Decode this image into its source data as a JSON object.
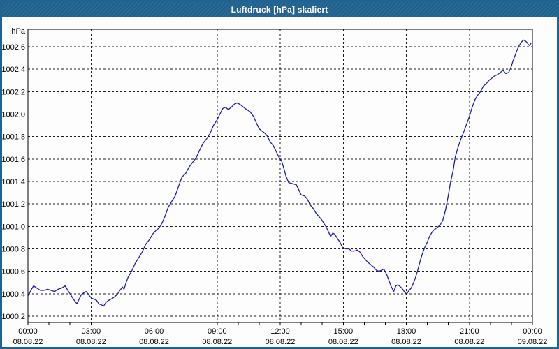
{
  "window": {
    "title": "Luftdruck [hPa] skaliert"
  },
  "colors": {
    "titlebar_bg": "#1f6391",
    "line": "#1c1cac",
    "grid": "#1b1b1b",
    "plot_bg": "#fdfdfd"
  },
  "chart_data": {
    "type": "line",
    "title": "Luftdruck [hPa] skaliert",
    "ylabel": "hPa",
    "xlabel": "",
    "grid": true,
    "legend": "none",
    "xlim": [
      0,
      24
    ],
    "ylim": [
      1000.144,
      1002.755
    ],
    "line_color": "#1c1cac",
    "y_ticks": [
      {
        "value": 1000.2,
        "label": "1000,2"
      },
      {
        "value": 1000.4,
        "label": "1000,4"
      },
      {
        "value": 1000.6,
        "label": "1000,6"
      },
      {
        "value": 1000.8,
        "label": "1000,8"
      },
      {
        "value": 1001.0,
        "label": "1001,0"
      },
      {
        "value": 1001.2,
        "label": "1001,2"
      },
      {
        "value": 1001.4,
        "label": "1001,4"
      },
      {
        "value": 1001.6,
        "label": "1001,6"
      },
      {
        "value": 1001.8,
        "label": "1001,8"
      },
      {
        "value": 1002.0,
        "label": "1002,0"
      },
      {
        "value": 1002.2,
        "label": "1002,2"
      },
      {
        "value": 1002.4,
        "label": "1002,4"
      },
      {
        "value": 1002.6,
        "label": "1002,6"
      }
    ],
    "x_ticks": [
      {
        "hour": 0,
        "time": "00:00",
        "date": "08.08.22"
      },
      {
        "hour": 3,
        "time": "03:00",
        "date": "08.08.22"
      },
      {
        "hour": 6,
        "time": "06:00",
        "date": "08.08.22"
      },
      {
        "hour": 9,
        "time": "09:00",
        "date": "08.08.22"
      },
      {
        "hour": 12,
        "time": "12:00",
        "date": "08.08.22"
      },
      {
        "hour": 15,
        "time": "15:00",
        "date": "08.08.22"
      },
      {
        "hour": 18,
        "time": "18:00",
        "date": "08.08.22"
      },
      {
        "hour": 21,
        "time": "21:00",
        "date": "08.08.22"
      },
      {
        "hour": 24,
        "time": "00:00",
        "date": "09.08.22"
      }
    ],
    "minor_tick_every_hours": 1,
    "series": [
      {
        "name": "Luftdruck",
        "x_hours": [
          0.0,
          0.17,
          0.27,
          0.43,
          0.6,
          0.77,
          0.93,
          1.1,
          1.27,
          1.43,
          1.6,
          1.77,
          1.93,
          2.03,
          2.17,
          2.33,
          2.43,
          2.53,
          2.67,
          2.77,
          2.93,
          3.03,
          3.17,
          3.27,
          3.37,
          3.5,
          3.6,
          3.7,
          3.83,
          4.03,
          4.17,
          4.27,
          4.37,
          4.5,
          4.57,
          4.67,
          4.77,
          4.93,
          5.1,
          5.27,
          5.43,
          5.6,
          5.77,
          5.93,
          6.07,
          6.2,
          6.33,
          6.5,
          6.67,
          6.83,
          7.0,
          7.17,
          7.33,
          7.5,
          7.67,
          7.83,
          8.0,
          8.17,
          8.33,
          8.5,
          8.67,
          8.83,
          9.0,
          9.13,
          9.27,
          9.4,
          9.53,
          9.67,
          9.83,
          9.97,
          10.13,
          10.33,
          10.57,
          10.73,
          10.87,
          11.0,
          11.13,
          11.27,
          11.4,
          11.53,
          11.67,
          11.8,
          11.93,
          12.07,
          12.17,
          12.27,
          12.4,
          12.6,
          12.77,
          12.87,
          13.0,
          13.17,
          13.3,
          13.43,
          13.57,
          13.7,
          13.83,
          13.97,
          14.1,
          14.2,
          14.3,
          14.4,
          14.5,
          14.6,
          14.73,
          14.87,
          14.97,
          15.13,
          15.27,
          15.4,
          15.53,
          15.67,
          15.8,
          15.93,
          16.03,
          16.17,
          16.3,
          16.43,
          16.57,
          16.7,
          16.83,
          16.93,
          17.07,
          17.17,
          17.27,
          17.4,
          17.5,
          17.6,
          17.73,
          17.83,
          17.93,
          18.03,
          18.13,
          18.23,
          18.33,
          18.43,
          18.53,
          18.67,
          18.77,
          18.87,
          19.0,
          19.1,
          19.23,
          19.33,
          19.47,
          19.6,
          19.73,
          19.87,
          20.0,
          20.1,
          20.23,
          20.33,
          20.47,
          20.6,
          20.73,
          20.87,
          21.0,
          21.13,
          21.27,
          21.4,
          21.53,
          21.67,
          21.8,
          21.93,
          22.07,
          22.2,
          22.33,
          22.47,
          22.6,
          22.73,
          22.87,
          22.97,
          23.07,
          23.17,
          23.27,
          23.37,
          23.47,
          23.57,
          23.67,
          23.73,
          23.8,
          23.87,
          23.93
        ],
        "values": [
          1000.38,
          1000.44,
          1000.47,
          1000.45,
          1000.43,
          1000.43,
          1000.44,
          1000.43,
          1000.42,
          1000.44,
          1000.45,
          1000.47,
          1000.42,
          1000.39,
          1000.35,
          1000.31,
          1000.35,
          1000.39,
          1000.41,
          1000.42,
          1000.38,
          1000.36,
          1000.35,
          1000.34,
          1000.31,
          1000.3,
          1000.29,
          1000.32,
          1000.34,
          1000.36,
          1000.38,
          1000.4,
          1000.43,
          1000.46,
          1000.44,
          1000.5,
          1000.55,
          1000.6,
          1000.67,
          1000.72,
          1000.77,
          1000.84,
          1000.88,
          1000.93,
          1000.96,
          1000.98,
          1001.01,
          1001.08,
          1001.17,
          1001.22,
          1001.27,
          1001.36,
          1001.44,
          1001.47,
          1001.53,
          1001.57,
          1001.61,
          1001.68,
          1001.74,
          1001.78,
          1001.83,
          1001.9,
          1001.95,
          1002.0,
          1002.05,
          1002.06,
          1002.04,
          1002.06,
          1002.09,
          1002.1,
          1002.08,
          1002.05,
          1002.02,
          1001.98,
          1001.92,
          1001.87,
          1001.85,
          1001.83,
          1001.8,
          1001.75,
          1001.72,
          1001.67,
          1001.62,
          1001.58,
          1001.52,
          1001.45,
          1001.39,
          1001.38,
          1001.37,
          1001.33,
          1001.28,
          1001.27,
          1001.24,
          1001.19,
          1001.16,
          1001.12,
          1001.09,
          1001.06,
          1001.02,
          1000.99,
          1000.95,
          1000.91,
          1000.94,
          1000.93,
          1000.89,
          1000.85,
          1000.81,
          1000.8,
          1000.8,
          1000.78,
          1000.78,
          1000.79,
          1000.77,
          1000.73,
          1000.71,
          1000.68,
          1000.66,
          1000.64,
          1000.61,
          1000.6,
          1000.61,
          1000.62,
          1000.57,
          1000.52,
          1000.47,
          1000.42,
          1000.47,
          1000.48,
          1000.46,
          1000.44,
          1000.41,
          1000.4,
          1000.43,
          1000.45,
          1000.49,
          1000.54,
          1000.6,
          1000.7,
          1000.76,
          1000.81,
          1000.86,
          1000.91,
          1000.95,
          1000.97,
          1000.99,
          1001.01,
          1001.05,
          1001.15,
          1001.28,
          1001.39,
          1001.5,
          1001.62,
          1001.71,
          1001.78,
          1001.84,
          1001.91,
          1001.98,
          1002.06,
          1002.13,
          1002.17,
          1002.2,
          1002.25,
          1002.27,
          1002.3,
          1002.32,
          1002.34,
          1002.35,
          1002.37,
          1002.39,
          1002.36,
          1002.37,
          1002.41,
          1002.47,
          1002.52,
          1002.57,
          1002.61,
          1002.64,
          1002.66,
          1002.65,
          1002.64,
          1002.62,
          1002.61,
          1002.63
        ]
      }
    ]
  }
}
